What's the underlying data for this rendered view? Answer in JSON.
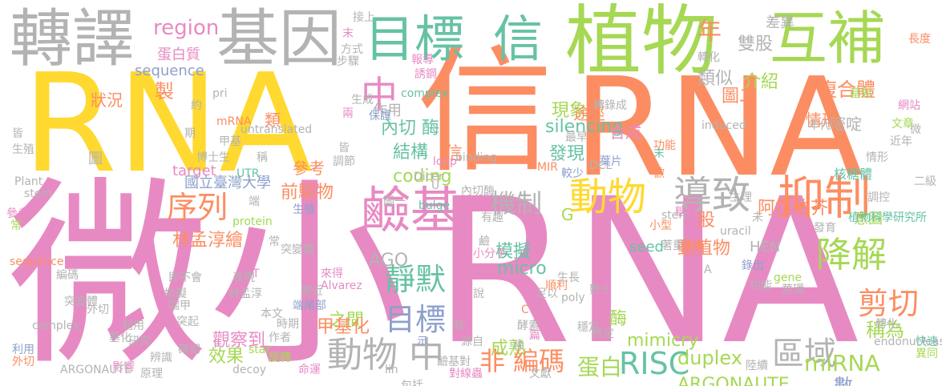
{
  "words": [
    {
      "text": "微小",
      "vertical": false
    },
    {
      "text": "RNA",
      "vertical": false
    },
    {
      "text": "RNA",
      "vertical": false
    },
    {
      "text": "RNA",
      "vertical": false
    },
    {
      "text": "信",
      "vertical": false
    },
    {
      "text": "植物",
      "vertical": false
    },
    {
      "text": "轉譯",
      "vertical": false
    },
    {
      "text": "基因",
      "vertical": false
    },
    {
      "text": "互補",
      "vertical": false
    },
    {
      "text": "目標",
      "vertical": false
    },
    {
      "text": "信",
      "vertical": false
    },
    {
      "text": "鹼基",
      "vertical": false
    },
    {
      "text": "抑制",
      "vertical": false
    },
    {
      "text": "導致",
      "vertical": false
    },
    {
      "text": "動物",
      "vertical": false
    },
    {
      "text": "中",
      "vertical": false
    },
    {
      "text": "序列",
      "vertical": false
    },
    {
      "text": "機制",
      "vertical": false
    },
    {
      "text": "降解",
      "vertical": false
    },
    {
      "text": "剪切",
      "vertical": false
    },
    {
      "text": "靜默",
      "vertical": false
    },
    {
      "text": "目標",
      "vertical": false
    },
    {
      "text": "動物 中",
      "vertical": false
    },
    {
      "text": "區域",
      "vertical": false
    },
    {
      "text": "RISC",
      "vertical": false
    },
    {
      "text": "非 編碼",
      "vertical": false
    },
    {
      "text": "miRNA",
      "vertical": false
    },
    {
      "text": "蛋白",
      "vertical": false
    },
    {
      "text": "年",
      "vertical": false
    },
    {
      "text": "region",
      "vertical": false
    },
    {
      "text": "稱為",
      "vertical": false
    },
    {
      "text": "數",
      "vertical": false
    },
    {
      "text": "duplex",
      "vertical": false
    },
    {
      "text": "複合體",
      "vertical": false
    },
    {
      "text": "ARGONAUTE",
      "vertical": false
    },
    {
      "text": "製",
      "vertical": false
    },
    {
      "text": "內切 酶",
      "vertical": false
    },
    {
      "text": "silencing",
      "vertical": false
    },
    {
      "text": "雙股",
      "vertical": false
    },
    {
      "text": "結構",
      "vertical": false
    },
    {
      "text": "coding",
      "vertical": false
    },
    {
      "text": "發現",
      "vertical": false
    },
    {
      "text": "介紹",
      "vertical": false
    },
    {
      "text": "阿拉伯芥",
      "vertical": false
    },
    {
      "text": "動植物",
      "vertical": false
    },
    {
      "text": "前驅物",
      "vertical": false
    },
    {
      "text": "林孟淳繪",
      "vertical": false
    },
    {
      "text": "模擬",
      "vertical": false
    },
    {
      "text": "AGO",
      "vertical": false
    },
    {
      "text": "micro",
      "vertical": false
    },
    {
      "text": "mimicry",
      "vertical": false
    },
    {
      "text": "之間",
      "vertical": false
    },
    {
      "text": "甲基化",
      "vertical": false
    },
    {
      "text": "觀察到",
      "vertical": false
    },
    {
      "text": "效果",
      "vertical": false
    },
    {
      "text": "成熟",
      "vertical": false
    },
    {
      "text": "蛋白質",
      "vertical": false
    },
    {
      "text": "sequence",
      "vertical": false
    },
    {
      "text": "seed",
      "vertical": false
    },
    {
      "text": "target",
      "vertical": false
    },
    {
      "text": "國立臺灣大學",
      "vertical": false
    },
    {
      "text": "作用",
      "vertical": false
    },
    {
      "text": "現象",
      "vertical": false
    },
    {
      "text": "酶",
      "vertical": false
    },
    {
      "text": "信",
      "vertical": false
    },
    {
      "text": "類似",
      "vertical": false
    },
    {
      "text": "圖二",
      "vertical": false
    },
    {
      "text": "股",
      "vertical": false
    },
    {
      "text": "途徑",
      "vertical": false
    },
    {
      "text": "嘧啶",
      "vertical": false
    },
    {
      "text": "合成",
      "vertical": false
    },
    {
      "text": "類",
      "vertical": false
    },
    {
      "text": "參考",
      "vertical": false
    },
    {
      "text": "狀況",
      "vertical": false
    },
    {
      "text": "情形",
      "vertical": false
    },
    {
      "text": "差異",
      "vertical": false
    },
    {
      "text": "圖",
      "vertical": false
    },
    {
      "text": "G",
      "vertical": false
    },
    {
      "text": "HEN",
      "vertical": false
    },
    {
      "text": "意圖",
      "vertical": false
    },
    {
      "text": "年代",
      "vertical": false
    },
    {
      "text": "近年",
      "vertical": false
    },
    {
      "text": "二級",
      "vertical": false
    },
    {
      "text": "情形",
      "vertical": false
    },
    {
      "text": "長度",
      "vertical": false
    },
    {
      "text": "文章",
      "vertical": false
    },
    {
      "text": "微",
      "vertical": false
    },
    {
      "text": "網站",
      "vertical": false
    },
    {
      "text": "核糖體",
      "vertical": false
    },
    {
      "text": "植物科學研究所",
      "vertical": false
    },
    {
      "text": "發育",
      "vertical": false
    },
    {
      "text": "調控",
      "vertical": false
    },
    {
      "text": "uracil",
      "vertical": false
    },
    {
      "text": "錄出",
      "vertical": false
    },
    {
      "text": "gene",
      "vertical": false
    },
    {
      "text": "莖環",
      "vertical": false
    },
    {
      "text": "功能",
      "vertical": false
    },
    {
      "text": "基對",
      "vertical": false
    },
    {
      "text": "轉化",
      "vertical": false
    },
    {
      "text": "快速",
      "vertical": false
    },
    {
      "text": "異同",
      "vertical": false
    },
    {
      "text": "轉化",
      "vertical": false
    },
    {
      "text": "endonuclease",
      "vertical": false
    },
    {
      "text": "陸續",
      "vertical": false
    },
    {
      "text": "功能",
      "vertical": false
    },
    {
      "text": "末",
      "vertical": false
    },
    {
      "text": "歡",
      "vertical": false
    },
    {
      "text": "induced",
      "vertical": false
    },
    {
      "text": "MIR",
      "vertical": false
    },
    {
      "text": "較少",
      "vertical": false
    },
    {
      "text": "DCL",
      "vertical": false
    },
    {
      "text": "轉錄成",
      "vertical": false
    },
    {
      "text": "最早",
      "vertical": false
    },
    {
      "text": "葉片",
      "vertical": false
    },
    {
      "text": "未",
      "vertical": false
    },
    {
      "text": "生理",
      "vertical": false
    },
    {
      "text": "足以",
      "vertical": false
    },
    {
      "text": "順利",
      "vertical": false
    },
    {
      "text": "poly",
      "vertical": false
    },
    {
      "text": "生長",
      "vertical": false
    },
    {
      "text": "數十",
      "vertical": false
    },
    {
      "text": "穩定",
      "vertical": false
    },
    {
      "text": "特定",
      "vertical": false
    },
    {
      "text": "C",
      "vertical": false
    },
    {
      "text": "酵素",
      "vertical": false
    },
    {
      "text": "篇",
      "vertical": false
    },
    {
      "text": "稀",
      "vertical": false
    },
    {
      "text": "文獻",
      "vertical": false
    },
    {
      "text": "著重",
      "vertical": false
    },
    {
      "text": "逆境",
      "vertical": false
    },
    {
      "text": "A",
      "vertical": false
    },
    {
      "text": "小型",
      "vertical": false
    },
    {
      "text": "糖體",
      "vertical": false
    },
    {
      "text": "stem",
      "vertical": false
    },
    {
      "text": "binding",
      "vertical": false
    },
    {
      "text": "loop",
      "vertical": false
    },
    {
      "text": "Dicer",
      "vertical": false
    },
    {
      "text": "U",
      "vertical": false
    },
    {
      "text": "內切酶",
      "vertical": false
    },
    {
      "text": "圖一",
      "vertical": false
    },
    {
      "text": "誘鋼",
      "vertical": false
    },
    {
      "text": "報導",
      "vertical": false
    },
    {
      "text": "complex",
      "vertical": false
    },
    {
      "text": "保護",
      "vertical": false
    },
    {
      "text": "生成",
      "vertical": false
    },
    {
      "text": "兩",
      "vertical": false
    },
    {
      "text": "皆",
      "vertical": false
    },
    {
      "text": "調節",
      "vertical": false
    },
    {
      "text": "接上",
      "vertical": false
    },
    {
      "text": "方式",
      "vertical": false
    },
    {
      "text": "步驟",
      "vertical": false
    },
    {
      "text": "末",
      "vertical": false
    },
    {
      "text": "有趣",
      "vertical": false
    },
    {
      "text": "鹼",
      "vertical": false
    },
    {
      "text": "小分子",
      "vertical": false
    },
    {
      "text": "說",
      "vertical": false
    },
    {
      "text": "易",
      "vertical": false
    },
    {
      "text": "源自",
      "vertical": false
    },
    {
      "text": "示",
      "vertical": false
    },
    {
      "text": "鹼基對",
      "vertical": false
    },
    {
      "text": "對線蟲",
      "vertical": false
    },
    {
      "text": "包括",
      "vertical": false
    },
    {
      "text": "lin",
      "vertical": false
    },
    {
      "text": "bulge",
      "vertical": false
    },
    {
      "text": "來得",
      "vertical": false
    },
    {
      "text": "Alvarez",
      "vertical": false
    },
    {
      "text": "鄰近",
      "vertical": false
    },
    {
      "text": "端尾部",
      "vertical": false
    },
    {
      "text": "時期",
      "vertical": false
    },
    {
      "text": "命運",
      "vertical": false
    },
    {
      "text": "旋轉",
      "vertical": false
    },
    {
      "text": "star",
      "vertical": false
    },
    {
      "text": "作者",
      "vertical": false
    },
    {
      "text": "本文",
      "vertical": false
    },
    {
      "text": "decoy",
      "vertical": false
    },
    {
      "text": "表現",
      "vertical": false
    },
    {
      "text": "林孟淳",
      "vertical": false
    },
    {
      "text": "T",
      "vertical": false
    },
    {
      "text": "常",
      "vertical": false
    },
    {
      "text": "突變體",
      "vertical": false
    },
    {
      "text": "生殖",
      "vertical": false
    },
    {
      "text": "端",
      "vertical": false
    },
    {
      "text": "protein",
      "vertical": false
    },
    {
      "text": "untranslated",
      "vertical": false
    },
    {
      "text": "稱",
      "vertical": false
    },
    {
      "text": "UTR",
      "vertical": false
    },
    {
      "text": "mRNA",
      "vertical": false
    },
    {
      "text": "期",
      "vertical": false
    },
    {
      "text": "pri",
      "vertical": false
    },
    {
      "text": "約",
      "vertical": false
    },
    {
      "text": "甲基",
      "vertical": false
    },
    {
      "text": "博士生",
      "vertical": false
    },
    {
      "text": "即不會",
      "vertical": false
    },
    {
      "text": "妨礙",
      "vertical": false
    },
    {
      "text": "端甲",
      "vertical": false
    },
    {
      "text": "突起",
      "vertical": false
    },
    {
      "text": "確認",
      "vertical": false
    },
    {
      "text": "辨識",
      "vertical": false
    },
    {
      "text": "原理",
      "vertical": false
    },
    {
      "text": "影響",
      "vertical": false
    },
    {
      "text": "研究",
      "vertical": false
    },
    {
      "text": "利用",
      "vertical": false
    },
    {
      "text": "基化",
      "vertical": false
    },
    {
      "text": "外切",
      "vertical": false
    },
    {
      "text": "編碼",
      "vertical": false
    },
    {
      "text": "突變體",
      "vertical": false
    },
    {
      "text": "complex",
      "vertical": false
    },
    {
      "text": "利用",
      "vertical": false
    },
    {
      "text": "外切",
      "vertical": false
    },
    {
      "text": "ARGONAUTE",
      "vertical": false
    },
    {
      "text": "sequence",
      "vertical": false
    },
    {
      "text": "常",
      "vertical": false
    },
    {
      "text": "參考",
      "vertical": false
    },
    {
      "text": "stem",
      "vertical": false
    },
    {
      "text": "Plant",
      "vertical": false
    },
    {
      "text": "生殖",
      "vertical": false
    },
    {
      "text": "皆",
      "vertical": false
    }
  ]
}
